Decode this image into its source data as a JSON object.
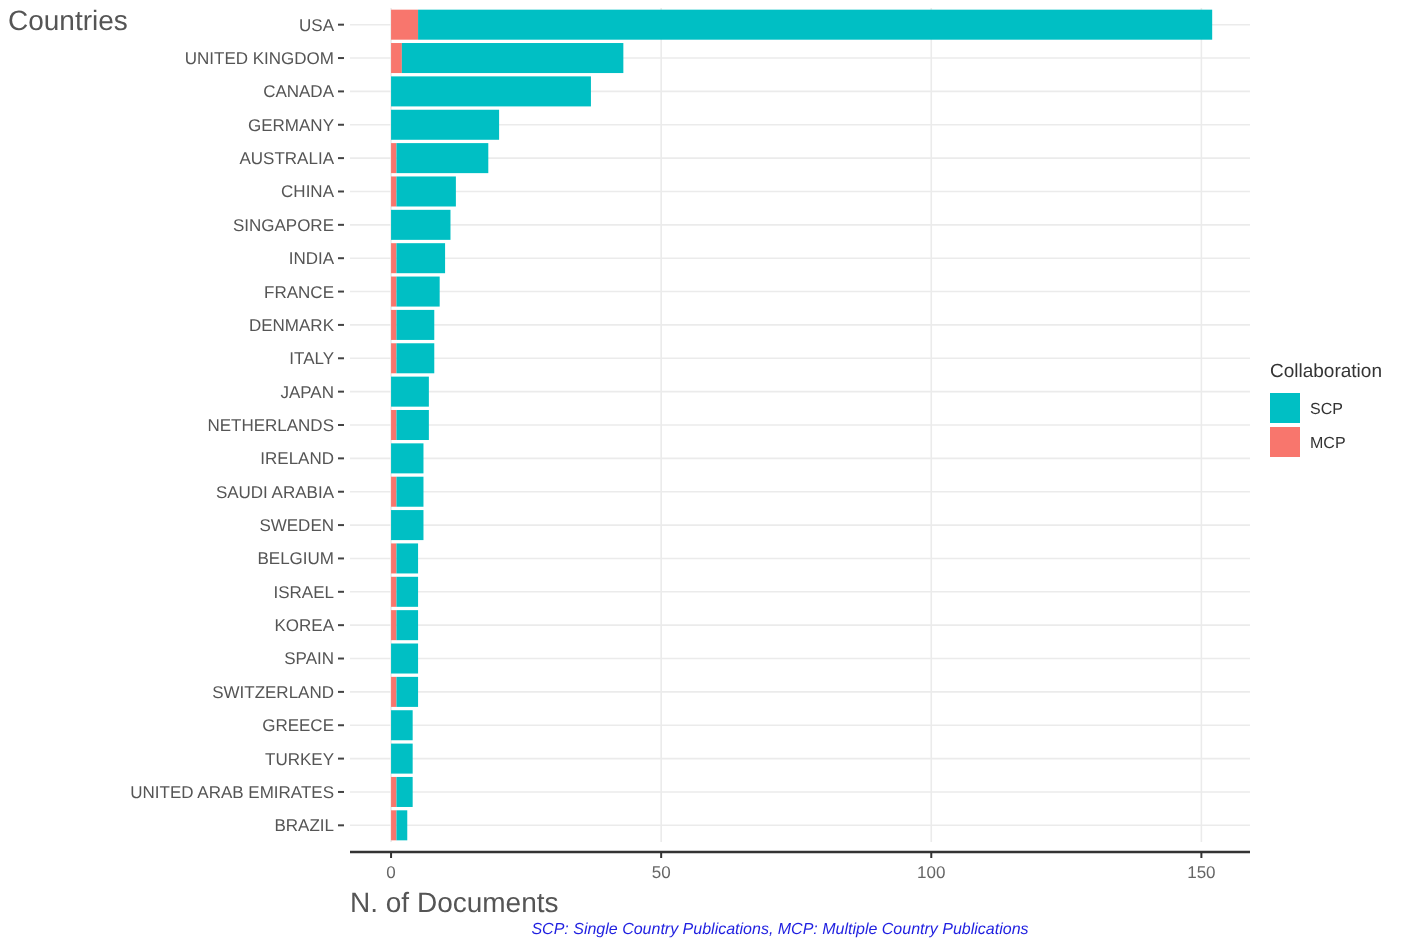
{
  "chart_data": {
    "type": "bar",
    "orientation": "horizontal",
    "stacked": true,
    "ylabel": "Countries",
    "xlabel": "N. of Documents",
    "legend_title": "Collaboration",
    "legend": "right",
    "grid": true,
    "categories": [
      "USA",
      "UNITED KINGDOM",
      "CANADA",
      "GERMANY",
      "AUSTRALIA",
      "CHINA",
      "SINGAPORE",
      "INDIA",
      "FRANCE",
      "DENMARK",
      "ITALY",
      "JAPAN",
      "NETHERLANDS",
      "IRELAND",
      "SAUDI ARABIA",
      "SWEDEN",
      "BELGIUM",
      "ISRAEL",
      "KOREA",
      "SPAIN",
      "SWITZERLAND",
      "GREECE",
      "TURKEY",
      "UNITED ARAB EMIRATES",
      "BRAZIL"
    ],
    "series": [
      {
        "name": "MCP",
        "color": "#f8766d",
        "values": [
          5,
          2,
          0,
          0,
          1,
          1,
          0,
          1,
          1,
          1,
          1,
          0,
          1,
          0,
          1,
          0,
          1,
          1,
          1,
          0,
          1,
          0,
          0,
          1,
          1
        ]
      },
      {
        "name": "SCP",
        "color": "#00bfc4",
        "values": [
          147,
          41,
          37,
          20,
          17,
          11,
          11,
          9,
          8,
          7,
          7,
          7,
          6,
          6,
          5,
          6,
          4,
          4,
          4,
          5,
          4,
          4,
          4,
          3,
          2
        ]
      }
    ],
    "xlim": [
      -7.6,
      159
    ],
    "xticks": [
      0,
      50,
      100,
      150
    ],
    "annotations": [
      "SCP: Single Country Publications, MCP: Multiple Country Publications"
    ]
  }
}
